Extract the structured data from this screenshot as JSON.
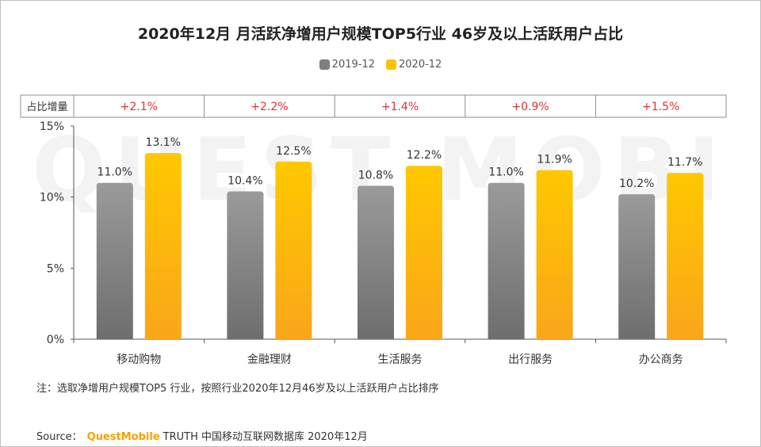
{
  "title": "2020年12月 月活跃净增用户规模TOP5行业 46岁及以上活跃用户占比",
  "legend": [
    {
      "label": "2019-12",
      "color": "#7f7f7f"
    },
    {
      "label": "2020-12",
      "color": "#ffc000"
    }
  ],
  "increase_table": {
    "header": "占比增量",
    "values": [
      "+2.1%",
      "+2.2%",
      "+1.4%",
      "+0.9%",
      "+1.5%"
    ],
    "color": "#e03030"
  },
  "chart_data": {
    "type": "bar",
    "categories": [
      "移动购物",
      "金融理财",
      "生活服务",
      "出行服务",
      "办公商务"
    ],
    "series": [
      {
        "name": "2019-12",
        "values": [
          11.0,
          10.4,
          10.8,
          11.0,
          10.2
        ],
        "labels": [
          "11.0%",
          "10.4%",
          "10.8%",
          "11.0%",
          "10.2%"
        ]
      },
      {
        "name": "2020-12",
        "values": [
          13.1,
          12.5,
          12.2,
          11.9,
          11.7
        ],
        "labels": [
          "13.1%",
          "12.5%",
          "12.2%",
          "11.9%",
          "11.7%"
        ]
      }
    ],
    "ylim": [
      0,
      15
    ],
    "yticks": [
      0,
      5,
      10,
      15
    ],
    "ytick_labels": [
      "0%",
      "5%",
      "10%",
      "15%"
    ],
    "grid": false,
    "legend_position": "top-center"
  },
  "watermark": "QUEST MOBILE",
  "note": "注：选取净增用户规模TOP5 行业，按照行业2020年12月46岁及以上活跃用户占比排序",
  "source": {
    "prefix": "Source：",
    "brand": "QuestMobile",
    "rest": "TRUTH 中国移动互联网数据库 2020年12月"
  }
}
